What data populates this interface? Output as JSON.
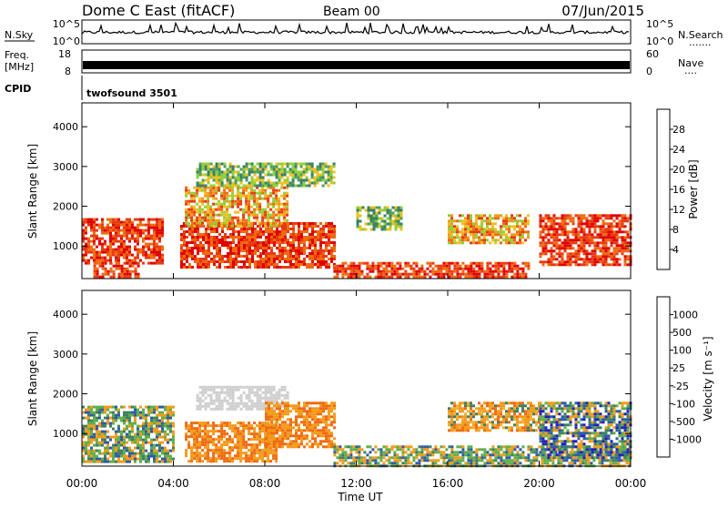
{
  "header": {
    "site": "Dome C East (fitACF)",
    "beam": "Beam 00",
    "date": "07/Jun/2015"
  },
  "strips": {
    "nsky": {
      "label": "N.Sky",
      "ticks": [
        "10^5",
        "10^0"
      ],
      "right_ticks": [
        "10^5",
        "10^0"
      ],
      "right_label": "N.Search",
      "right_dots": "......."
    },
    "freq": {
      "label_top": "Freq.",
      "label_unit": "[MHz]",
      "ticks": [
        "18",
        "8"
      ],
      "right_ticks": [
        "60",
        "0"
      ],
      "right_label": "Nave",
      "right_dots": "...."
    },
    "cpid": {
      "label": "CPID",
      "value": "twofsound 3501"
    }
  },
  "colors": {
    "power": [
      "#1f1fe0",
      "#2e4fa8",
      "#3a7f6a",
      "#4fa05a",
      "#8fcf3a",
      "#f0c020",
      "#f39a1a",
      "#f06a10",
      "#e83a10",
      "#e00000"
    ],
    "velocity": [
      "#2020c0",
      "#2e5aa8",
      "#3f8060",
      "#5fae4a",
      "#cfcfcf",
      "#f0b030",
      "#f39a1a",
      "#f06a10",
      "#e03010",
      "#e00000"
    ]
  },
  "chart_data": [
    {
      "type": "heatmap",
      "title": "",
      "xlabel": "Time UT",
      "ylabel": "Slant Range [km]",
      "x_ticks": [
        "00:00",
        "04:00",
        "08:00",
        "12:00",
        "16:00",
        "20:00",
        "00:00"
      ],
      "y_ticks": [
        1000,
        2000,
        3000,
        4000
      ],
      "xlim_hours": [
        0,
        24
      ],
      "ylim_km": [
        180,
        4600
      ],
      "colorbar": {
        "label": "Power [dB]",
        "ticks": [
          4,
          8,
          12,
          16,
          20,
          24,
          28
        ]
      },
      "regions": [
        {
          "t": [
            0,
            3.5
          ],
          "r": [
            600,
            1700
          ],
          "level": "high"
        },
        {
          "t": [
            0.5,
            2.5
          ],
          "r": [
            250,
            600
          ],
          "level": "high"
        },
        {
          "t": [
            4.3,
            11
          ],
          "r": [
            500,
            1600
          ],
          "level": "high"
        },
        {
          "t": [
            4.5,
            9
          ],
          "r": [
            1500,
            2500
          ],
          "level": "medium"
        },
        {
          "t": [
            5,
            11
          ],
          "r": [
            2500,
            3100
          ],
          "level": "low"
        },
        {
          "t": [
            11,
            19.5
          ],
          "r": [
            200,
            600
          ],
          "level": "high"
        },
        {
          "t": [
            12,
            14
          ],
          "r": [
            1400,
            2000
          ],
          "level": "low"
        },
        {
          "t": [
            16,
            19.5
          ],
          "r": [
            1100,
            1800
          ],
          "level": "medium"
        },
        {
          "t": [
            20,
            24
          ],
          "r": [
            500,
            1800
          ],
          "level": "high"
        }
      ]
    },
    {
      "type": "heatmap",
      "title": "",
      "xlabel": "Time UT",
      "ylabel": "Slant Range [km]",
      "x_ticks": [
        "00:00",
        "04:00",
        "08:00",
        "12:00",
        "16:00",
        "20:00",
        "00:00"
      ],
      "y_ticks": [
        1000,
        2000,
        3000,
        4000
      ],
      "xlim_hours": [
        0,
        24
      ],
      "ylim_km": [
        180,
        4600
      ],
      "colorbar": {
        "label": "Velocity [m s⁻¹]",
        "ticks": [
          1000,
          500,
          100,
          25,
          -25,
          -100,
          -500,
          -1000
        ]
      },
      "regions": [
        {
          "t": [
            0,
            4
          ],
          "r": [
            300,
            1700
          ],
          "level": "mixed-green"
        },
        {
          "t": [
            4.5,
            8.5
          ],
          "r": [
            300,
            1300
          ],
          "level": "orange"
        },
        {
          "t": [
            5,
            9
          ],
          "r": [
            1600,
            2200
          ],
          "level": "grey"
        },
        {
          "t": [
            8,
            11
          ],
          "r": [
            700,
            1800
          ],
          "level": "orange"
        },
        {
          "t": [
            11,
            24
          ],
          "r": [
            200,
            700
          ],
          "level": "mixed-green"
        },
        {
          "t": [
            16,
            20
          ],
          "r": [
            1100,
            1800
          ],
          "level": "mixed-orange"
        },
        {
          "t": [
            20,
            24
          ],
          "r": [
            400,
            1800
          ],
          "level": "mixed-blue"
        }
      ]
    }
  ]
}
